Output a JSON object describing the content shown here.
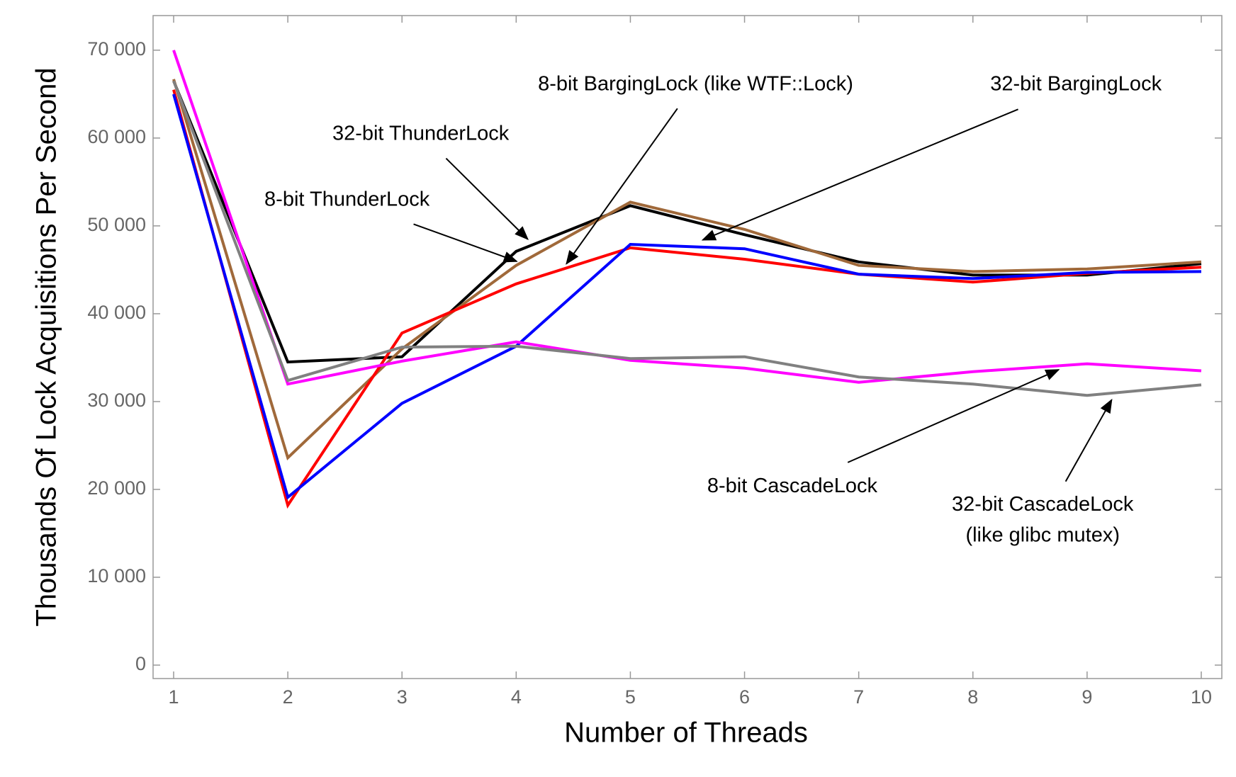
{
  "chart_data": {
    "type": "line",
    "xlabel": "Number of Threads",
    "ylabel": "Thousands Of Lock Acquisitions Per Second",
    "x": [
      1,
      2,
      3,
      4,
      5,
      6,
      7,
      8,
      9,
      10
    ],
    "series": [
      {
        "color": "#000000",
        "values": [
          66500,
          34500,
          35100,
          47100,
          52300,
          49000,
          45900,
          44400,
          44400,
          45700
        ]
      },
      {
        "color": "#a0693a",
        "values": [
          66700,
          23600,
          36000,
          45500,
          52700,
          49600,
          45500,
          44800,
          45100,
          45900
        ]
      },
      {
        "color": "#ff0000",
        "values": [
          65500,
          18200,
          37800,
          43400,
          47500,
          46200,
          44500,
          43600,
          44600,
          45300
        ]
      },
      {
        "color": "#0000ff",
        "values": [
          65000,
          19100,
          29800,
          36300,
          47900,
          47400,
          44500,
          44000,
          44700,
          44800
        ]
      },
      {
        "color": "#ff00ff",
        "values": [
          70000,
          32000,
          34600,
          36800,
          34700,
          33800,
          32200,
          33400,
          34300,
          33500
        ]
      },
      {
        "color": "#808080",
        "values": [
          66500,
          32400,
          36200,
          36300,
          34900,
          35100,
          32800,
          32000,
          30700,
          31900
        ]
      }
    ],
    "annotations": [
      {
        "lines": [
          "8-bit BargingLock (like WTF::Lock)"
        ]
      },
      {
        "lines": [
          "32-bit BargingLock"
        ]
      },
      {
        "lines": [
          "32-bit ThunderLock"
        ]
      },
      {
        "lines": [
          "8-bit ThunderLock"
        ]
      },
      {
        "lines": [
          "8-bit CascadeLock"
        ]
      },
      {
        "lines": [
          "32-bit CascadeLock",
          "(like glibc mutex)"
        ]
      }
    ],
    "xlim": [
      0.82,
      10.18
    ],
    "ylim": [
      -1530,
      73940
    ],
    "xticks": [
      1,
      2,
      3,
      4,
      5,
      6,
      7,
      8,
      9,
      10
    ],
    "yticks": [
      0,
      {
        "value": 10000,
        "label": "10 000"
      },
      {
        "value": 20000,
        "label": "20 000"
      },
      {
        "value": 30000,
        "label": "30 000"
      },
      {
        "value": 40000,
        "label": "40 000"
      },
      {
        "value": 50000,
        "label": "50 000"
      },
      {
        "value": 60000,
        "label": "60 000"
      },
      {
        "value": 70000,
        "label": "70 000"
      }
    ]
  }
}
